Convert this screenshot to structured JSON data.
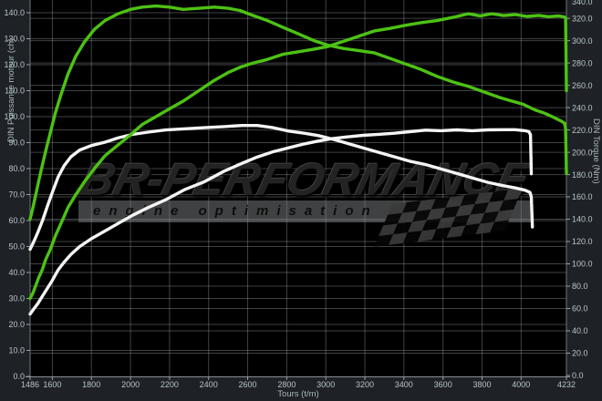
{
  "watermark": {
    "brand": "BR-Performance",
    "tagline": "engine optimisation"
  },
  "colors": {
    "tuned_curve": "#4dc214",
    "stock_curve": "#f4f4f4",
    "plot_background": "#000000",
    "margin_background": "#1e2226",
    "grid_line": "rgba(190,196,202,0.33)",
    "tick_label": "#b9c4cd",
    "axis_line": "#8a9096"
  },
  "chart_data": {
    "type": "line",
    "title": "",
    "x_axis": {
      "label": "Tours (t/m)",
      "min": 1486,
      "max": 4232,
      "ticks": [
        1486,
        1600,
        1800,
        2000,
        2200,
        2400,
        2600,
        2800,
        3000,
        3200,
        3400,
        3600,
        3800,
        4000,
        4232
      ]
    },
    "y_left": {
      "label": "DIN Puissance moteur (ch)",
      "min": 0,
      "max": 140,
      "step": 10
    },
    "y_right": {
      "label": "DIN Torque (Nm)",
      "min": 0,
      "max": 340,
      "step": 20
    },
    "legend": "none",
    "grid": "both-axes",
    "series": [
      {
        "name": "torque-stock",
        "color": "#f4f4f4",
        "axis": "right",
        "peak": 224,
        "points": [
          [
            1486,
            113
          ],
          [
            1505,
            120
          ],
          [
            1525,
            128
          ],
          [
            1550,
            139
          ],
          [
            1575,
            152
          ],
          [
            1600,
            164
          ],
          [
            1630,
            178
          ],
          [
            1660,
            188
          ],
          [
            1695,
            196
          ],
          [
            1740,
            202
          ],
          [
            1800,
            206
          ],
          [
            1870,
            209
          ],
          [
            1940,
            213
          ],
          [
            2010,
            216
          ],
          [
            2090,
            218
          ],
          [
            2180,
            220
          ],
          [
            2280,
            221
          ],
          [
            2380,
            222
          ],
          [
            2480,
            223
          ],
          [
            2570,
            224
          ],
          [
            2650,
            224
          ],
          [
            2730,
            222
          ],
          [
            2810,
            219
          ],
          [
            2890,
            217
          ],
          [
            2960,
            215
          ],
          [
            3030,
            212
          ],
          [
            3110,
            208
          ],
          [
            3190,
            204
          ],
          [
            3270,
            200
          ],
          [
            3350,
            196
          ],
          [
            3430,
            192
          ],
          [
            3510,
            189
          ],
          [
            3590,
            185
          ],
          [
            3670,
            181
          ],
          [
            3750,
            177
          ],
          [
            3830,
            173
          ],
          [
            3910,
            170
          ],
          [
            3970,
            168
          ],
          [
            4020,
            166
          ],
          [
            4045,
            164
          ],
          [
            4052,
            160
          ],
          [
            4058,
            133
          ]
        ]
      },
      {
        "name": "power-stock",
        "color": "#f4f4f4",
        "axis": "left",
        "peak": 95,
        "points": [
          [
            1486,
            24
          ],
          [
            1505,
            26
          ],
          [
            1525,
            28
          ],
          [
            1550,
            31
          ],
          [
            1575,
            34
          ],
          [
            1600,
            37
          ],
          [
            1630,
            41
          ],
          [
            1660,
            44
          ],
          [
            1695,
            47
          ],
          [
            1740,
            50
          ],
          [
            1800,
            53
          ],
          [
            1870,
            56
          ],
          [
            1940,
            59
          ],
          [
            2010,
            62
          ],
          [
            2090,
            65
          ],
          [
            2180,
            68
          ],
          [
            2280,
            72
          ],
          [
            2380,
            75
          ],
          [
            2480,
            79
          ],
          [
            2570,
            82
          ],
          [
            2650,
            84.5
          ],
          [
            2730,
            86.5
          ],
          [
            2810,
            88
          ],
          [
            2890,
            89.5
          ],
          [
            2960,
            90.6
          ],
          [
            3030,
            91.5
          ],
          [
            3110,
            92.2
          ],
          [
            3190,
            92.8
          ],
          [
            3270,
            93.2
          ],
          [
            3350,
            93.6
          ],
          [
            3430,
            94.2
          ],
          [
            3510,
            94.8
          ],
          [
            3590,
            94.6
          ],
          [
            3670,
            94.9
          ],
          [
            3750,
            94.6
          ],
          [
            3830,
            94.9
          ],
          [
            3910,
            95
          ],
          [
            3970,
            95
          ],
          [
            4020,
            94.6
          ],
          [
            4040,
            94.2
          ],
          [
            4048,
            93
          ],
          [
            4052,
            78
          ]
        ]
      },
      {
        "name": "torque-tuned",
        "color": "#4dc214",
        "axis": "right",
        "peak": 331,
        "points": [
          [
            1486,
            140
          ],
          [
            1500,
            150
          ],
          [
            1515,
            162
          ],
          [
            1530,
            174
          ],
          [
            1548,
            188
          ],
          [
            1566,
            201
          ],
          [
            1590,
            218
          ],
          [
            1615,
            235
          ],
          [
            1645,
            252
          ],
          [
            1680,
            270
          ],
          [
            1720,
            286
          ],
          [
            1765,
            299
          ],
          [
            1815,
            310
          ],
          [
            1870,
            318
          ],
          [
            1935,
            324
          ],
          [
            2000,
            328
          ],
          [
            2060,
            330
          ],
          [
            2130,
            331
          ],
          [
            2200,
            330
          ],
          [
            2270,
            328
          ],
          [
            2350,
            329
          ],
          [
            2430,
            330
          ],
          [
            2500,
            329
          ],
          [
            2560,
            327
          ],
          [
            2620,
            323
          ],
          [
            2700,
            318
          ],
          [
            2780,
            312
          ],
          [
            2860,
            306
          ],
          [
            2940,
            300
          ],
          [
            3010,
            296
          ],
          [
            3090,
            293
          ],
          [
            3170,
            291
          ],
          [
            3250,
            289
          ],
          [
            3330,
            284
          ],
          [
            3410,
            279
          ],
          [
            3490,
            274
          ],
          [
            3570,
            268
          ],
          [
            3650,
            263
          ],
          [
            3730,
            259
          ],
          [
            3810,
            254
          ],
          [
            3890,
            249
          ],
          [
            3950,
            246
          ],
          [
            4010,
            243
          ],
          [
            4070,
            238
          ],
          [
            4120,
            235
          ],
          [
            4170,
            231
          ],
          [
            4205,
            228
          ],
          [
            4222,
            226
          ],
          [
            4228,
            221
          ],
          [
            4232,
            181
          ]
        ]
      },
      {
        "name": "power-tuned",
        "color": "#4dc214",
        "axis": "left",
        "peak": 140,
        "points": [
          [
            1486,
            30
          ],
          [
            1500,
            32
          ],
          [
            1515,
            35
          ],
          [
            1530,
            38
          ],
          [
            1548,
            41
          ],
          [
            1566,
            45
          ],
          [
            1590,
            49
          ],
          [
            1615,
            54
          ],
          [
            1645,
            59
          ],
          [
            1680,
            65
          ],
          [
            1720,
            70
          ],
          [
            1765,
            75
          ],
          [
            1815,
            80
          ],
          [
            1870,
            85
          ],
          [
            1935,
            89
          ],
          [
            2000,
            93
          ],
          [
            2060,
            97
          ],
          [
            2130,
            100
          ],
          [
            2200,
            103
          ],
          [
            2270,
            106
          ],
          [
            2350,
            110
          ],
          [
            2430,
            114
          ],
          [
            2500,
            117
          ],
          [
            2560,
            119
          ],
          [
            2620,
            120.5
          ],
          [
            2700,
            122
          ],
          [
            2780,
            124
          ],
          [
            2860,
            125
          ],
          [
            2940,
            126
          ],
          [
            3010,
            127
          ],
          [
            3090,
            129
          ],
          [
            3170,
            131
          ],
          [
            3250,
            133
          ],
          [
            3330,
            134
          ],
          [
            3410,
            135.2
          ],
          [
            3490,
            136.2
          ],
          [
            3570,
            137
          ],
          [
            3650,
            138.2
          ],
          [
            3730,
            139.6
          ],
          [
            3790,
            138.8
          ],
          [
            3850,
            139.6
          ],
          [
            3910,
            138.9
          ],
          [
            3970,
            139.3
          ],
          [
            4030,
            138.6
          ],
          [
            4090,
            139
          ],
          [
            4140,
            138.5
          ],
          [
            4190,
            138.8
          ],
          [
            4222,
            138.4
          ],
          [
            4228,
            138
          ],
          [
            4232,
            110
          ]
        ]
      }
    ]
  }
}
